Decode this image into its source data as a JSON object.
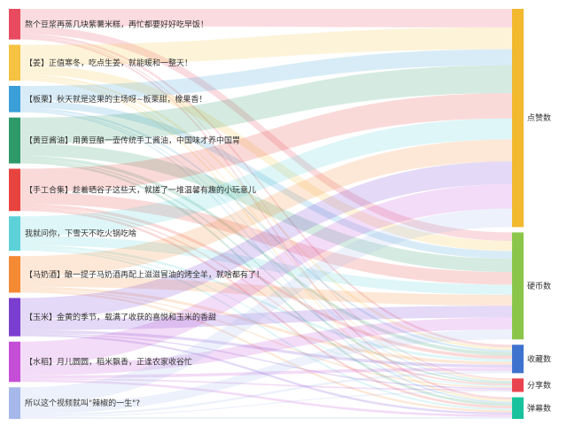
{
  "chart_data": {
    "type": "sankey",
    "sources": [
      {
        "name": "熬个豆浆再蒸几块紫薯米糕，再忙都要好好吃早饭！",
        "color": "#e84a5f"
      },
      {
        "name": "【姜】正值寒冬，吃点生姜，就能暖和一整天！",
        "color": "#f5c242"
      },
      {
        "name": "【板栗】秋天就是这果的主场呀~板栗甜，橡果香！",
        "color": "#3a9fd8"
      },
      {
        "name": "【黄豆酱油】用黄豆酿一壶传统手工酱油，中国味才养中国胃",
        "color": "#2e9a6a"
      },
      {
        "name": "【手工合集】趁着晒谷子这些天，就搓了一堆温馨有趣的小玩意儿",
        "color": "#e8443f"
      },
      {
        "name": "我就问你，下雪天不吃火锅吃啥",
        "color": "#5cd2d8"
      },
      {
        "name": "【马奶酒】酿一提子马奶酒再配上滋滋冒油的烤全羊，就啥都有了！",
        "color": "#f58a35"
      },
      {
        "name": "【玉米】金黄的季节，载满了收获的喜悦和玉米的香甜",
        "color": "#7a3fd0"
      },
      {
        "name": "【水稻】月儿圆圆，稻米飘香，正逢农家收谷忙",
        "color": "#c44fd6"
      },
      {
        "name": "所以这个视频就叫\"辣椒的一生\"?",
        "color": "#a6b8ea"
      }
    ],
    "targets": [
      {
        "name": "点赞数",
        "color": "#f2b82e"
      },
      {
        "name": "硬币数",
        "color": "#8bc64a"
      },
      {
        "name": "收藏数",
        "color": "#3e72cf"
      },
      {
        "name": "分享数",
        "color": "#e8434e"
      },
      {
        "name": "弹幕数",
        "color": "#18c29c"
      }
    ],
    "links": [
      [
        22,
        10,
        3.0,
        1.4,
        2.6
      ],
      [
        26,
        12,
        3.2,
        1.8,
        2.6
      ],
      [
        19,
        9,
        2.5,
        1.2,
        1.8
      ],
      [
        33,
        16,
        4.3,
        2.0,
        3.2
      ],
      [
        30,
        15,
        4.0,
        1.8,
        3.0
      ],
      [
        25,
        12,
        3.2,
        1.4,
        2.3
      ],
      [
        26,
        13,
        3.5,
        1.6,
        2.5
      ],
      [
        27,
        14,
        3.6,
        1.6,
        2.6
      ],
      [
        29,
        14,
        3.8,
        1.8,
        2.8
      ],
      [
        22,
        12,
        2.6,
        1.4,
        2.3
      ]
    ]
  }
}
